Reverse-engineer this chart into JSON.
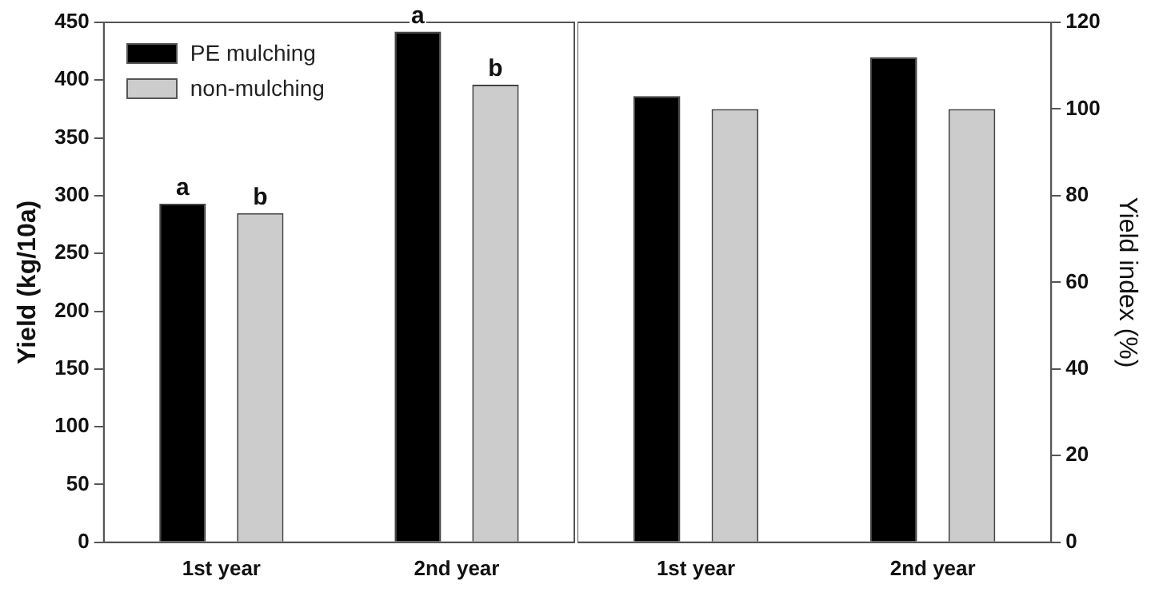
{
  "chart_data": [
    {
      "type": "bar",
      "ylabel": "Yield (kg/10a)",
      "categories": [
        "1st year",
        "2nd year"
      ],
      "series": [
        {
          "name": "PE mulching",
          "color": "#000000",
          "values": [
            293,
            442
          ]
        },
        {
          "name": "non-mulching",
          "color": "#cccccc",
          "values": [
            285,
            396
          ]
        }
      ],
      "ylim": [
        0,
        450
      ],
      "yticks": [
        0,
        50,
        100,
        150,
        200,
        250,
        300,
        350,
        400,
        450
      ],
      "grid": false,
      "legend": "top left",
      "annotations": [
        "a",
        "b",
        "a",
        "b"
      ]
    },
    {
      "type": "bar",
      "y2label": "Yield index (%)",
      "categories": [
        "1st year",
        "2nd year"
      ],
      "series": [
        {
          "color": "#000000",
          "values": [
            103,
            112
          ],
          "axis": "y2"
        },
        {
          "color": "#cccccc",
          "values": [
            100,
            100
          ],
          "axis": "y2"
        }
      ],
      "y2lim": [
        0,
        120
      ],
      "y2ticks": [
        0,
        20,
        40,
        60,
        80,
        100,
        120
      ],
      "grid": false
    }
  ]
}
